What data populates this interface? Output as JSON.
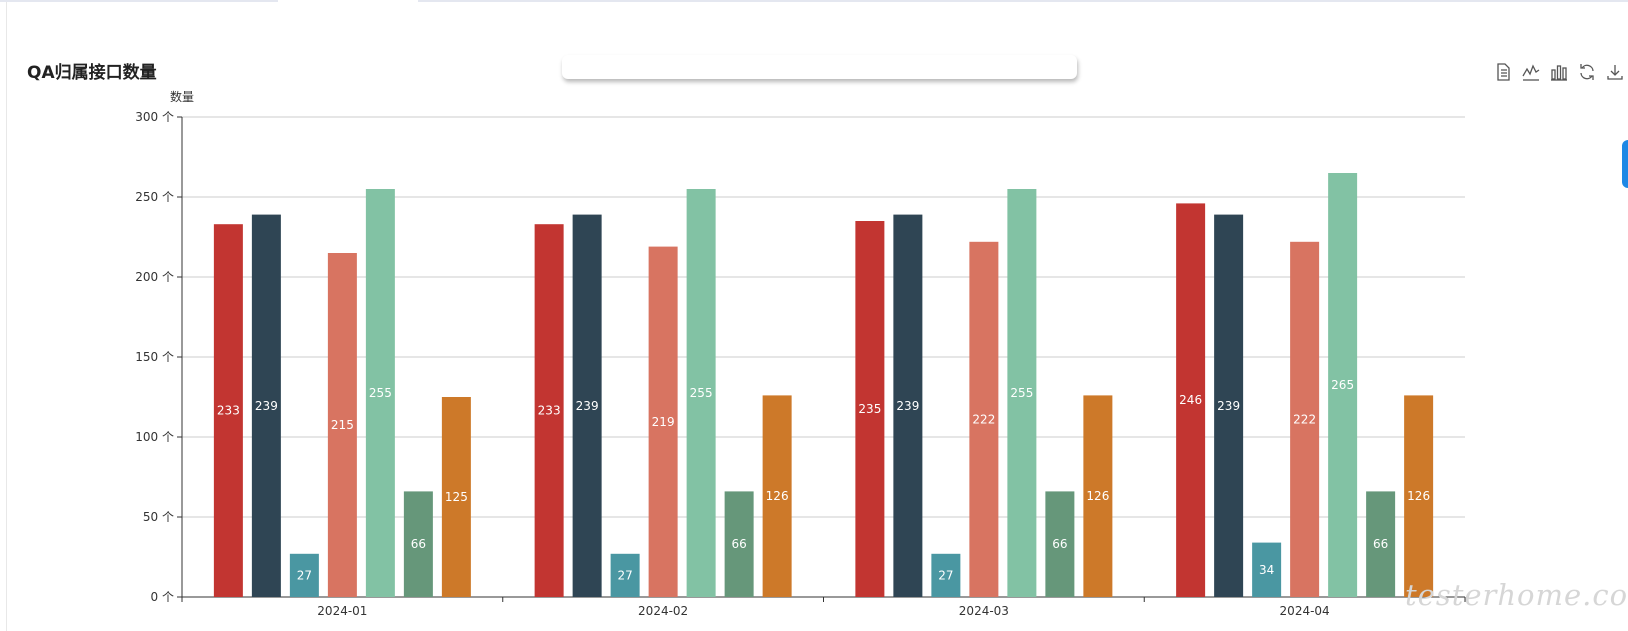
{
  "chart_data": {
    "type": "bar",
    "title": "QA归属接口数量",
    "ylabel": "数量",
    "y_unit": "个",
    "ylim": [
      0,
      300
    ],
    "yticks": [
      0,
      50,
      100,
      150,
      200,
      250,
      300
    ],
    "grid": true,
    "categories": [
      "2024-01",
      "2024-02",
      "2024-03",
      "2024-04"
    ],
    "series": [
      {
        "color": "#c23531",
        "values": [
          233,
          233,
          235,
          246
        ]
      },
      {
        "color": "#2f4554",
        "values": [
          239,
          239,
          239,
          239
        ]
      },
      {
        "color": "#4a97a2",
        "values": [
          27,
          27,
          27,
          34
        ]
      },
      {
        "color": "#d87461",
        "values": [
          215,
          219,
          222,
          222
        ]
      },
      {
        "color": "#82c2a4",
        "values": [
          255,
          255,
          255,
          265
        ]
      },
      {
        "color": "#66977a",
        "values": [
          66,
          66,
          66,
          66
        ]
      },
      {
        "color": "#cd7929",
        "values": [
          125,
          126,
          126,
          126
        ]
      }
    ]
  },
  "toolbox": {
    "icons": [
      "data-view-icon",
      "line-chart-icon",
      "bar-chart-icon",
      "restore-icon",
      "download-icon"
    ]
  },
  "watermark": "testerhome.com"
}
